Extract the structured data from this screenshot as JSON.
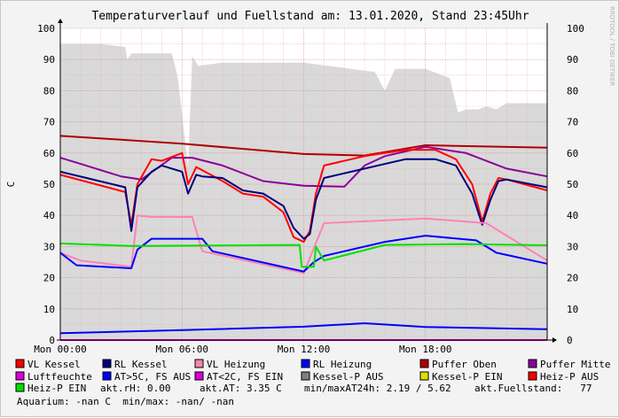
{
  "chart_data": {
    "type": "line",
    "title": "Temperaturverlauf und Fuellstand am: 13.01.2020, Stand 23:45Uhr",
    "ylabel": "C",
    "watermark": "RRDTOOL / TOBI OETIKER",
    "x_ticks": [
      "Mon 00:00",
      "Mon 06:00",
      "Mon 12:00",
      "Mon 18:00"
    ],
    "y_ticks": [
      0,
      10,
      20,
      30,
      40,
      50,
      60,
      70,
      80,
      90,
      100
    ],
    "xlim": [
      0,
      24
    ],
    "ylim": [
      0,
      100
    ],
    "grid": true,
    "fill_area": {
      "name": "akt.Fuellstand",
      "color": "#d9d9d9",
      "x": [
        0,
        2,
        3.2,
        3.3,
        3.5,
        5.5,
        5.8,
        6.3,
        6.5,
        6.8,
        8,
        12,
        15.5,
        16,
        16.5,
        18,
        19.2,
        19.6,
        20,
        20.6,
        21,
        21.5,
        22,
        23,
        24
      ],
      "values": [
        95,
        95,
        94,
        90,
        92,
        92,
        84,
        55,
        91,
        88,
        89,
        89,
        86,
        80,
        87,
        87,
        84,
        73,
        74,
        74,
        75,
        74,
        76,
        76,
        76
      ]
    },
    "series": [
      {
        "name": "Puffer Oben",
        "color": "#b00000",
        "x": [
          0,
          6,
          12,
          15,
          18,
          24
        ],
        "values": [
          65.5,
          63,
          59.7,
          59.2,
          62.5,
          61.7
        ]
      },
      {
        "name": "Puffer Mitte",
        "color": "#8b0099",
        "x": [
          0,
          1,
          3,
          4,
          5.5,
          6.5,
          8,
          10,
          12,
          14,
          15,
          16,
          18,
          20,
          22,
          24
        ],
        "values": [
          58.5,
          56.5,
          52.5,
          51.5,
          58.5,
          58.5,
          56,
          51,
          49.5,
          49.2,
          56,
          59,
          62,
          60,
          55,
          52.5
        ]
      },
      {
        "name": "VL Kessel",
        "color": "#ff0000",
        "x": [
          0,
          3.2,
          3.5,
          3.8,
          4.5,
          5,
          6,
          6.3,
          6.7,
          7,
          8,
          9,
          10,
          11,
          11.5,
          12,
          12.3,
          12.6,
          13,
          15,
          17,
          18.5,
          19.5,
          20.3,
          20.8,
          21.2,
          21.6,
          22,
          24
        ],
        "values": [
          53,
          47.5,
          37,
          50,
          58,
          57.5,
          60,
          50,
          55.5,
          54.5,
          51,
          47,
          46,
          41,
          33,
          31.5,
          35,
          47,
          56,
          59,
          61,
          61,
          58,
          50,
          38,
          47,
          52,
          51.5,
          48
        ]
      },
      {
        "name": "RL Kessel",
        "color": "#000080",
        "x": [
          0,
          3.2,
          3.5,
          3.8,
          4.5,
          5,
          6,
          6.3,
          6.7,
          7,
          8,
          9,
          10,
          11,
          11.5,
          12,
          12.3,
          12.6,
          13,
          15,
          17,
          18.5,
          19.5,
          20.3,
          20.8,
          21.2,
          21.6,
          22,
          24
        ],
        "values": [
          54,
          49,
          35,
          49,
          54,
          56,
          54,
          47,
          53,
          52.5,
          52,
          48,
          47,
          43,
          36,
          32.5,
          34,
          45,
          52,
          55,
          58,
          58,
          56,
          47,
          37,
          45,
          51,
          51.5,
          49
        ]
      },
      {
        "name": "VL Heizung",
        "color": "#ff82b4",
        "x": [
          0,
          1,
          3.5,
          3.8,
          4.5,
          6.5,
          7,
          12,
          13,
          18,
          21,
          24
        ],
        "values": [
          28,
          25.5,
          23.5,
          40,
          39.5,
          39.5,
          28.5,
          21.5,
          37.5,
          39,
          37.5,
          25.5
        ]
      },
      {
        "name": "RL Heizung",
        "color": "#0000ff",
        "x": [
          0,
          0.8,
          3.5,
          3.8,
          4.5,
          7,
          7.5,
          12,
          12.5,
          13,
          16,
          18,
          20.5,
          21.5,
          24
        ],
        "values": [
          28,
          24,
          23,
          29,
          32.5,
          32.5,
          28.5,
          22,
          25,
          27,
          31.5,
          33.5,
          32,
          28,
          24.5
        ]
      },
      {
        "name": "Heiz-P EIN",
        "color": "#00e000",
        "x": [
          0,
          3.5,
          4,
          11.8,
          11.9,
          12.5,
          12.6,
          13,
          16,
          20,
          24
        ],
        "values": [
          31,
          30.2,
          30.2,
          30.5,
          23.5,
          23.5,
          30,
          25.5,
          30.5,
          30.8,
          30.4
        ]
      },
      {
        "name": "AT>5C, FS AUS",
        "color": "#0000ff",
        "x": [
          0,
          6,
          12,
          15,
          18,
          24
        ],
        "values": [
          2.2,
          3.2,
          4.3,
          5.4,
          4.2,
          3.5
        ]
      },
      {
        "name": "Luftfeuchte",
        "color": "#dd00dd",
        "x": [
          0,
          24
        ],
        "values": [
          0,
          0
        ]
      }
    ]
  },
  "legend": [
    {
      "color": "#ff0000",
      "label": "VL Kessel"
    },
    {
      "color": "#000080",
      "label": "RL Kessel"
    },
    {
      "color": "#ff82b4",
      "label": "VL Heizung"
    },
    {
      "color": "#0000ff",
      "label": "RL Heizung"
    },
    {
      "color": "#b00000",
      "label": "Puffer Oben"
    },
    {
      "color": "#8b0099",
      "label": "Puffer Mitte"
    },
    {
      "color": "#dd00dd",
      "label": "Luftfeuchte"
    },
    {
      "color": "#0000ff",
      "label": "AT>5C, FS AUS"
    },
    {
      "color": "#dd00dd",
      "label": "AT<2C, FS EIN"
    },
    {
      "color": "#808080",
      "label": "Kessel-P AUS"
    },
    {
      "color": "#e0e000",
      "label": "Kessel-P EIN"
    },
    {
      "color": "#ff0000",
      "label": "Heiz-P AUS"
    },
    {
      "color": "#00e000",
      "label": "Heiz-P EIN"
    }
  ],
  "status": {
    "rh": "akt.rH: 0.00",
    "at": "akt.AT: 3.35 C",
    "minmax": "min/maxAT24h: 2.19 / 5.62",
    "fuellstand": "akt.Fuellstand:   77",
    "aquarium": "Aquarium: -nan C  min/max: -nan/ -nan"
  }
}
